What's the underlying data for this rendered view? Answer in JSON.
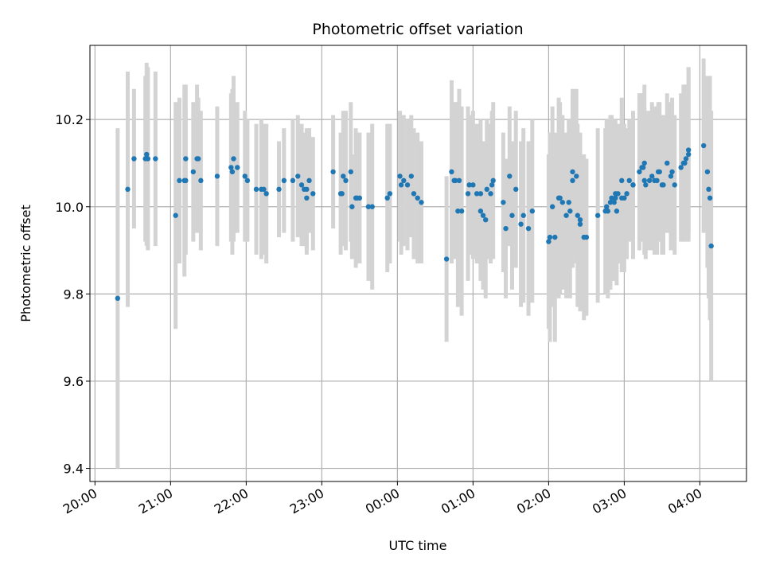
{
  "chart_data": {
    "type": "scatter",
    "title": "Photometric offset variation",
    "xlabel": "UTC time",
    "ylabel": "Photometric offset",
    "x_start_label": "20:00",
    "xlim": [
      "19:56",
      "04:37"
    ],
    "ylim": [
      9.37,
      10.37
    ],
    "grid": true,
    "x_ticks": [
      "20:00",
      "21:00",
      "22:00",
      "23:00",
      "00:00",
      "01:00",
      "02:00",
      "03:00",
      "04:00"
    ],
    "y_ticks": [
      "9.4",
      "9.6",
      "9.8",
      "10.0",
      "10.2"
    ],
    "y_tick_values": [
      9.4,
      9.6,
      9.8,
      10.0,
      10.2
    ],
    "colors": {
      "point": "#1f77b4",
      "error_bar": "#d3d3d3",
      "grid": "#b0b0b0"
    },
    "series": [
      {
        "x": [
          "20:18",
          "20:26",
          "20:31",
          "20:40",
          "20:41",
          "20:42",
          "20:48",
          "21:04",
          "21:07",
          "21:11",
          "21:12",
          "21:12",
          "21:18",
          "21:21",
          "21:22",
          "21:24",
          "21:37",
          "21:48",
          "21:49",
          "21:50",
          "21:53",
          "21:59",
          "22:01",
          "22:08",
          "22:12",
          "22:14",
          "22:16",
          "22:26",
          "22:30",
          "22:37",
          "22:41",
          "22:44",
          "22:46",
          "22:48",
          "22:48",
          "22:50",
          "22:53",
          "23:09",
          "23:15",
          "23:16",
          "23:17",
          "23:19",
          "23:23",
          "23:24",
          "23:27",
          "23:28",
          "23:30",
          "23:37",
          "23:40",
          "23:52",
          "23:54",
          "00:02",
          "00:03",
          "00:05",
          "00:08",
          "00:11",
          "00:13",
          "00:16",
          "00:19",
          "00:39",
          "00:43",
          "00:45",
          "00:46",
          "00:48",
          "00:49",
          "00:51",
          "00:56",
          "00:57",
          "01:00",
          "01:03",
          "01:06",
          "01:06",
          "01:08",
          "01:10",
          "01:11",
          "01:14",
          "01:15",
          "01:16",
          "01:24",
          "01:26",
          "01:29",
          "01:31",
          "01:34",
          "01:38",
          "01:40",
          "01:44",
          "01:47",
          "02:00",
          "02:01",
          "02:03",
          "02:05",
          "02:08",
          "02:09",
          "02:11",
          "02:14",
          "02:16",
          "02:17",
          "02:19",
          "02:19",
          "02:22",
          "02:23",
          "02:25",
          "02:25",
          "02:28",
          "02:30",
          "02:39",
          "02:45",
          "02:46",
          "02:47",
          "02:49",
          "02:50",
          "02:52",
          "02:53",
          "02:53",
          "02:54",
          "02:55",
          "02:58",
          "02:58",
          "03:00",
          "03:02",
          "03:04",
          "03:07",
          "03:07",
          "03:12",
          "03:14",
          "03:15",
          "03:16",
          "03:16",
          "03:17",
          "03:20",
          "03:22",
          "03:24",
          "03:26",
          "03:27",
          "03:28",
          "03:30",
          "03:31",
          "03:34",
          "03:37",
          "03:38",
          "03:40",
          "03:45",
          "03:47",
          "03:48",
          "03:49",
          "03:51",
          "03:51",
          "04:03",
          "04:06",
          "04:07",
          "04:08",
          "04:09"
        ],
        "y": [
          9.79,
          10.04,
          10.11,
          10.11,
          10.12,
          10.11,
          10.11,
          9.98,
          10.06,
          10.06,
          10.11,
          10.06,
          10.08,
          10.11,
          10.11,
          10.06,
          10.07,
          10.09,
          10.08,
          10.11,
          10.09,
          10.07,
          10.06,
          10.04,
          10.04,
          10.04,
          10.03,
          10.04,
          10.06,
          10.06,
          10.07,
          10.05,
          10.04,
          10.02,
          10.04,
          10.06,
          10.03,
          10.08,
          10.03,
          10.03,
          10.07,
          10.06,
          10.08,
          10.0,
          10.02,
          10.02,
          10.02,
          10.0,
          10.0,
          10.02,
          10.03,
          10.07,
          10.05,
          10.06,
          10.05,
          10.07,
          10.03,
          10.02,
          10.01,
          9.88,
          10.08,
          10.06,
          10.06,
          9.99,
          10.06,
          9.99,
          10.03,
          10.05,
          10.05,
          10.03,
          10.03,
          9.99,
          9.98,
          9.97,
          10.04,
          10.03,
          10.05,
          10.06,
          10.01,
          9.95,
          10.07,
          9.98,
          10.04,
          9.96,
          9.98,
          9.95,
          9.99,
          9.92,
          9.93,
          10.0,
          9.93,
          10.02,
          10.02,
          10.01,
          9.98,
          10.01,
          9.99,
          10.08,
          10.06,
          10.07,
          9.98,
          9.96,
          9.97,
          9.93,
          9.93,
          9.98,
          9.99,
          10.0,
          9.99,
          10.01,
          10.02,
          10.01,
          10.02,
          10.03,
          9.99,
          10.03,
          10.06,
          10.02,
          10.02,
          10.03,
          10.06,
          10.05,
          10.05,
          10.08,
          10.09,
          10.09,
          10.1,
          10.06,
          10.05,
          10.06,
          10.07,
          10.06,
          10.06,
          10.08,
          10.08,
          10.05,
          10.05,
          10.1,
          10.07,
          10.08,
          10.05,
          10.09,
          10.1,
          10.1,
          10.11,
          10.13,
          10.12,
          10.14,
          10.08,
          10.04,
          10.02,
          9.91
        ],
        "yerr": [
          0.39,
          0.27,
          0.16,
          0.19,
          0.21,
          0.21,
          0.2,
          0.26,
          0.19,
          0.22,
          0.17,
          0.17,
          0.16,
          0.17,
          0.14,
          0.16,
          0.16,
          0.17,
          0.19,
          0.19,
          0.15,
          0.15,
          0.14,
          0.15,
          0.16,
          0.15,
          0.16,
          0.11,
          0.12,
          0.14,
          0.14,
          0.14,
          0.13,
          0.13,
          0.14,
          0.12,
          0.13,
          0.13,
          0.14,
          0.12,
          0.15,
          0.16,
          0.16,
          0.12,
          0.16,
          0.15,
          0.15,
          0.17,
          0.19,
          0.17,
          0.16,
          0.15,
          0.16,
          0.15,
          0.15,
          0.14,
          0.15,
          0.15,
          0.14,
          0.19,
          0.21,
          0.18,
          0.18,
          0.22,
          0.21,
          0.24,
          0.2,
          0.16,
          0.17,
          0.16,
          0.17,
          0.16,
          0.17,
          0.18,
          0.16,
          0.16,
          0.17,
          0.18,
          0.16,
          0.16,
          0.16,
          0.17,
          0.18,
          0.19,
          0.2,
          0.2,
          0.21,
          0.2,
          0.24,
          0.23,
          0.24,
          0.23,
          0.22,
          0.2,
          0.19,
          0.19,
          0.2,
          0.19,
          0.2,
          0.2,
          0.21,
          0.2,
          0.2,
          0.19,
          0.18,
          0.2,
          0.19,
          0.2,
          0.2,
          0.2,
          0.19,
          0.18,
          0.17,
          0.17,
          0.17,
          0.16,
          0.19,
          0.17,
          0.17,
          0.15,
          0.14,
          0.16,
          0.17,
          0.18,
          0.17,
          0.17,
          0.18,
          0.17,
          0.17,
          0.16,
          0.17,
          0.17,
          0.17,
          0.16,
          0.16,
          0.16,
          0.16,
          0.16,
          0.17,
          0.17,
          0.16,
          0.17,
          0.18,
          0.18,
          0.17,
          0.19,
          0.2,
          0.2,
          0.22,
          0.25,
          0.28,
          0.31
        ]
      }
    ]
  }
}
